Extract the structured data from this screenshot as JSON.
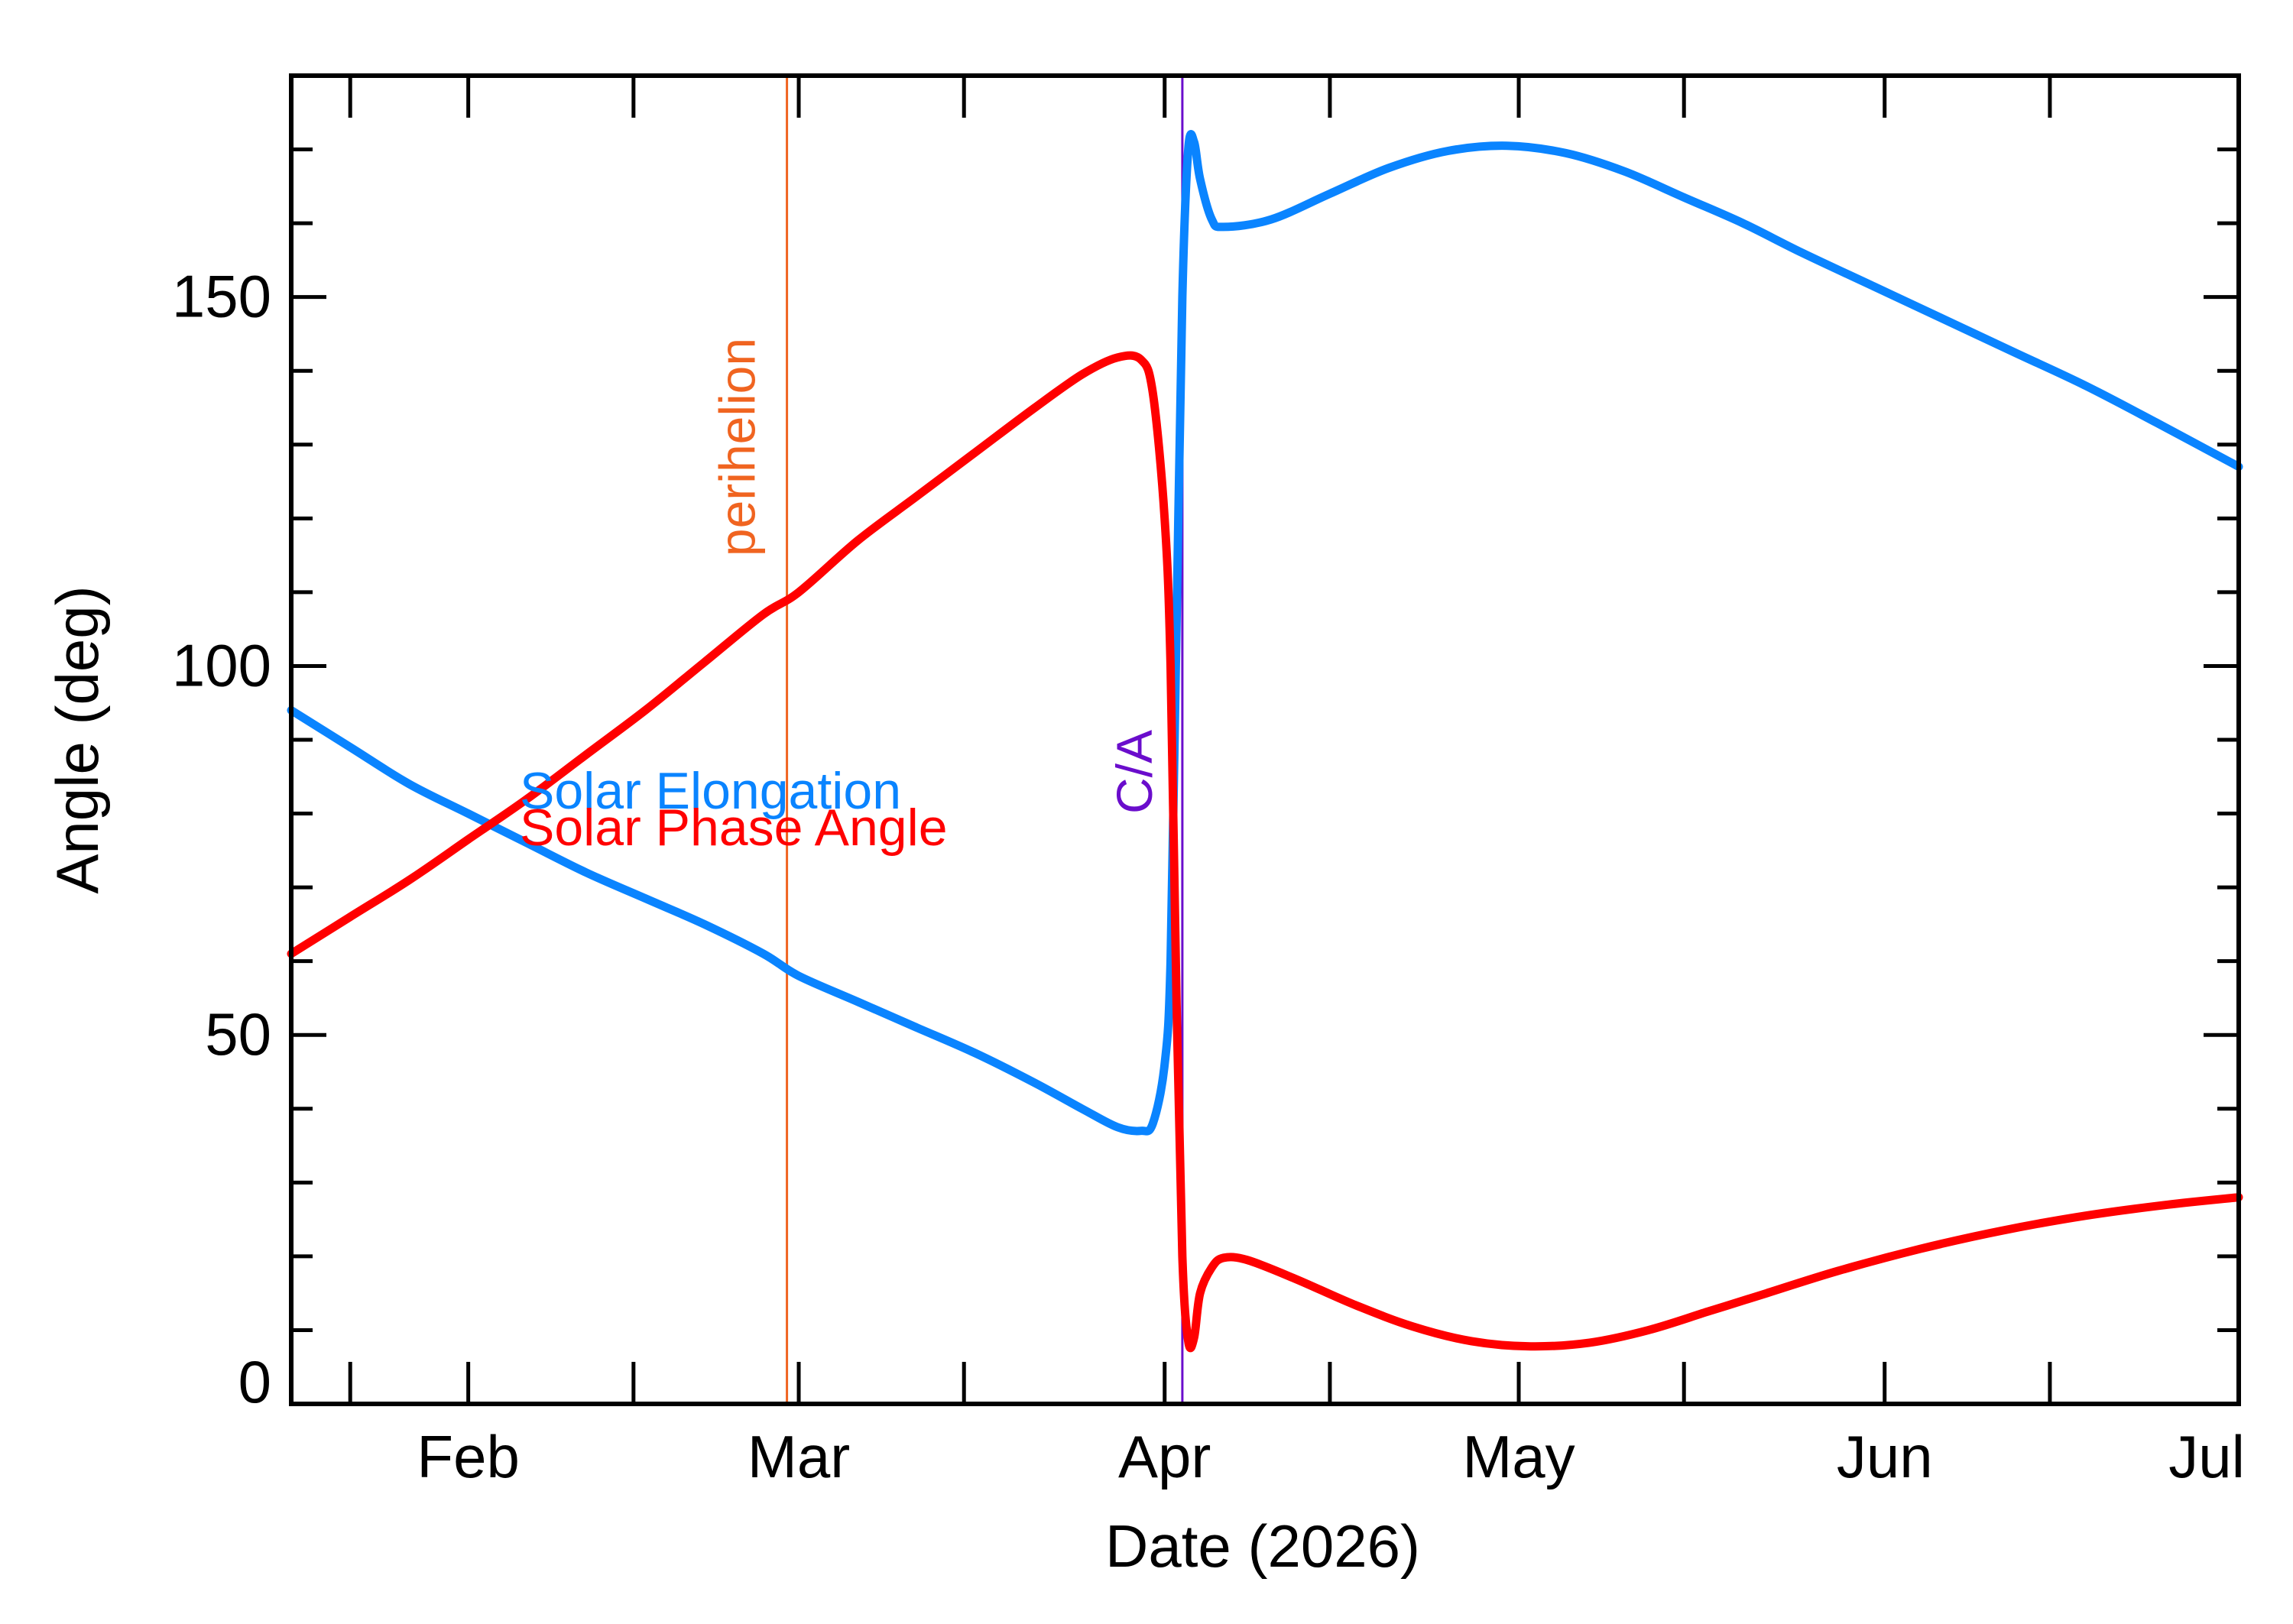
{
  "chart_data": {
    "type": "line",
    "xlabel": "Date (2026)",
    "ylabel": "Angle (deg)",
    "xlim": [
      "2026-01-17",
      "2026-07-01"
    ],
    "ylim": [
      0,
      180
    ],
    "x_major_ticks": [
      {
        "date": "2026-02-01",
        "label": "Feb"
      },
      {
        "date": "2026-03-01",
        "label": "Mar"
      },
      {
        "date": "2026-04-01",
        "label": "Apr"
      },
      {
        "date": "2026-05-01",
        "label": "May"
      },
      {
        "date": "2026-06-01",
        "label": "Jun"
      },
      {
        "date": "2026-07-01",
        "label": "Jul"
      }
    ],
    "x_minor_ticks": [
      "2026-01-22",
      "2026-02-15",
      "2026-03-15",
      "2026-04-15",
      "2026-05-15",
      "2026-06-15"
    ],
    "y_major_ticks": [
      0,
      50,
      100,
      150
    ],
    "y_minor_step": 10,
    "grid": false,
    "series": [
      {
        "name": "Solar Elongation",
        "color": "#0a84ff",
        "points": [
          [
            "2026-01-17",
            94
          ],
          [
            "2026-01-22",
            89
          ],
          [
            "2026-01-27",
            84
          ],
          [
            "2026-02-01",
            80
          ],
          [
            "2026-02-06",
            76
          ],
          [
            "2026-02-11",
            72
          ],
          [
            "2026-02-16",
            68.5
          ],
          [
            "2026-02-21",
            65
          ],
          [
            "2026-02-26",
            61
          ],
          [
            "2026-03-01",
            58
          ],
          [
            "2026-03-06",
            54.5
          ],
          [
            "2026-03-11",
            51
          ],
          [
            "2026-03-16",
            47.5
          ],
          [
            "2026-03-21",
            43.5
          ],
          [
            "2026-03-25",
            40
          ],
          [
            "2026-03-28",
            37.5
          ],
          [
            "2026-03-30",
            37
          ],
          [
            "2026-03-31",
            38
          ],
          [
            "2026-04-01",
            46
          ],
          [
            "2026-04-01T12:00",
            60
          ],
          [
            "2026-04-02",
            105
          ],
          [
            "2026-04-02T12:00",
            150
          ],
          [
            "2026-04-03",
            170
          ],
          [
            "2026-04-03T12:00",
            171
          ],
          [
            "2026-04-04",
            166
          ],
          [
            "2026-04-05",
            160.5
          ],
          [
            "2026-04-06",
            159.5
          ],
          [
            "2026-04-10",
            160.5
          ],
          [
            "2026-04-15",
            164
          ],
          [
            "2026-04-20",
            167.5
          ],
          [
            "2026-04-25",
            169.8
          ],
          [
            "2026-04-30",
            170.5
          ],
          [
            "2026-05-05",
            169.5
          ],
          [
            "2026-05-10",
            167
          ],
          [
            "2026-05-15",
            163.5
          ],
          [
            "2026-05-20",
            160
          ],
          [
            "2026-05-25",
            156
          ],
          [
            "2026-05-31",
            151.5
          ],
          [
            "2026-06-06",
            147
          ],
          [
            "2026-06-12",
            142.5
          ],
          [
            "2026-06-18",
            138
          ],
          [
            "2026-06-24",
            133
          ],
          [
            "2026-07-01",
            127
          ]
        ]
      },
      {
        "name": "Solar Phase Angle",
        "color": "#ff0000",
        "points": [
          [
            "2026-01-17",
            61
          ],
          [
            "2026-01-22",
            66
          ],
          [
            "2026-01-27",
            71
          ],
          [
            "2026-02-01",
            76.5
          ],
          [
            "2026-02-06",
            82
          ],
          [
            "2026-02-11",
            88
          ],
          [
            "2026-02-16",
            94
          ],
          [
            "2026-02-21",
            100.5
          ],
          [
            "2026-02-26",
            107
          ],
          [
            "2026-03-01",
            110
          ],
          [
            "2026-03-06",
            117
          ],
          [
            "2026-03-11",
            123
          ],
          [
            "2026-03-16",
            129
          ],
          [
            "2026-03-21",
            135
          ],
          [
            "2026-03-25",
            139.5
          ],
          [
            "2026-03-28",
            141.8
          ],
          [
            "2026-03-30",
            141.5
          ],
          [
            "2026-03-31",
            137
          ],
          [
            "2026-04-01",
            120
          ],
          [
            "2026-04-01T12:00",
            100
          ],
          [
            "2026-04-02",
            55
          ],
          [
            "2026-04-02T12:00",
            20
          ],
          [
            "2026-04-03",
            8.5
          ],
          [
            "2026-04-03T12:00",
            9
          ],
          [
            "2026-04-04",
            15
          ],
          [
            "2026-04-05",
            18.5
          ],
          [
            "2026-04-06",
            19.8
          ],
          [
            "2026-04-08",
            19.5
          ],
          [
            "2026-04-12",
            17
          ],
          [
            "2026-04-17",
            13.5
          ],
          [
            "2026-04-22",
            10.5
          ],
          [
            "2026-04-27",
            8.5
          ],
          [
            "2026-05-02",
            7.8
          ],
          [
            "2026-05-07",
            8.3
          ],
          [
            "2026-05-12",
            10
          ],
          [
            "2026-05-17",
            12.5
          ],
          [
            "2026-05-22",
            15
          ],
          [
            "2026-05-28",
            18
          ],
          [
            "2026-06-04",
            21
          ],
          [
            "2026-06-11",
            23.5
          ],
          [
            "2026-06-18",
            25.5
          ],
          [
            "2026-06-25",
            27
          ],
          [
            "2026-07-01",
            28
          ]
        ]
      }
    ],
    "events": [
      {
        "date": "2026-02-28",
        "label": "perihelion",
        "color": "#f06420"
      },
      {
        "date": "2026-04-02T12:00",
        "label": "C/A",
        "color": "#6a0dcc"
      }
    ]
  }
}
